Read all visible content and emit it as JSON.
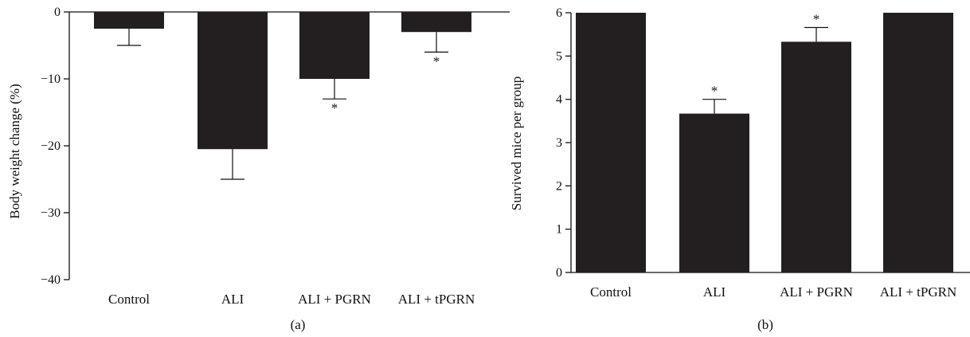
{
  "chart_data": [
    {
      "type": "bar",
      "panel_label": "(a)",
      "categories": [
        "Control",
        "ALI",
        "ALI + PGRN",
        "ALI + tPGRN"
      ],
      "values": [
        -2.5,
        -20.5,
        -10,
        -3
      ],
      "errors": [
        2.5,
        4.5,
        3,
        3
      ],
      "significance": [
        "",
        "",
        "*",
        "*"
      ],
      "ylabel": "Body weight change (%)",
      "xlabel": "",
      "ylim": [
        -40,
        0
      ],
      "yticks": [
        0,
        -10,
        -20,
        -30,
        -40
      ],
      "bar_color": "#231f20",
      "grid": false
    },
    {
      "type": "bar",
      "panel_label": "(b)",
      "categories": [
        "Control",
        "ALI",
        "ALI + PGRN",
        "ALI + tPGRN"
      ],
      "values": [
        6,
        3.67,
        5.33,
        6
      ],
      "errors": [
        0,
        0.33,
        0.33,
        0
      ],
      "significance": [
        "",
        "*",
        "*",
        ""
      ],
      "ylabel": "Survived mice per group",
      "xlabel": "",
      "ylim": [
        0,
        6
      ],
      "yticks": [
        0,
        1,
        2,
        3,
        4,
        5,
        6
      ],
      "bar_color": "#231f20",
      "grid": false
    }
  ]
}
